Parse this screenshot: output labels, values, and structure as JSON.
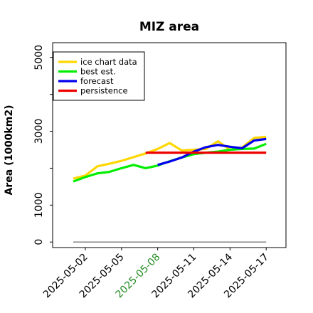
{
  "chart_data": {
    "type": "line",
    "title": "MIZ area",
    "xlabel": "",
    "ylabel": "Area (1000km2)",
    "x_dates": [
      "2025-05-01",
      "2025-05-02",
      "2025-05-03",
      "2025-05-04",
      "2025-05-05",
      "2025-05-06",
      "2025-05-07",
      "2025-05-08",
      "2025-05-09",
      "2025-05-10",
      "2025-05-11",
      "2025-05-12",
      "2025-05-13",
      "2025-05-14",
      "2025-05-15",
      "2025-05-16",
      "2025-05-17"
    ],
    "x_ticks": [
      "2025-05-02",
      "2025-05-05",
      "2025-05-08",
      "2025-05-11",
      "2025-05-14",
      "2025-05-17"
    ],
    "highlight_tick": "2025-05-08",
    "highlight_color": "#228b22",
    "ylim": [
      -150,
      5400
    ],
    "y_ticks": [
      0,
      1000,
      3000,
      5000
    ],
    "y_minor_ticks": [
      2000,
      4000
    ],
    "legend_position": "upper-left",
    "series": [
      {
        "name": "ice chart data",
        "color": "#ffd700",
        "points": [
          [
            "2025-05-01",
            1720
          ],
          [
            "2025-05-02",
            1800
          ],
          [
            "2025-05-03",
            2050
          ],
          [
            "2025-05-04",
            2120
          ],
          [
            "2025-05-05",
            2200
          ],
          [
            "2025-05-06",
            2300
          ],
          [
            "2025-05-07",
            2400
          ],
          [
            "2025-05-08",
            2520
          ],
          [
            "2025-05-09",
            2680
          ],
          [
            "2025-05-10",
            2480
          ],
          [
            "2025-05-11",
            2500
          ],
          [
            "2025-05-12",
            2520
          ],
          [
            "2025-05-13",
            2730
          ],
          [
            "2025-05-14",
            2500
          ],
          [
            "2025-05-15",
            2560
          ],
          [
            "2025-05-16",
            2820
          ],
          [
            "2025-05-17",
            2850
          ]
        ]
      },
      {
        "name": "best est.",
        "color": "#00ee00",
        "points": [
          [
            "2025-05-01",
            1640
          ],
          [
            "2025-05-02",
            1760
          ],
          [
            "2025-05-03",
            1860
          ],
          [
            "2025-05-04",
            1900
          ],
          [
            "2025-05-05",
            2000
          ],
          [
            "2025-05-06",
            2090
          ],
          [
            "2025-05-07",
            2000
          ],
          [
            "2025-05-08",
            2070
          ],
          [
            "2025-05-09",
            2190
          ],
          [
            "2025-05-10",
            2290
          ],
          [
            "2025-05-11",
            2380
          ],
          [
            "2025-05-12",
            2420
          ],
          [
            "2025-05-13",
            2450
          ],
          [
            "2025-05-14",
            2500
          ],
          [
            "2025-05-15",
            2520
          ],
          [
            "2025-05-16",
            2530
          ],
          [
            "2025-05-17",
            2660
          ]
        ]
      },
      {
        "name": "forecast",
        "color": "#0000ee",
        "points": [
          [
            "2025-05-08",
            2090
          ],
          [
            "2025-05-09",
            2180
          ],
          [
            "2025-05-10",
            2290
          ],
          [
            "2025-05-11",
            2450
          ],
          [
            "2025-05-12",
            2570
          ],
          [
            "2025-05-13",
            2630
          ],
          [
            "2025-05-14",
            2580
          ],
          [
            "2025-05-15",
            2540
          ],
          [
            "2025-05-16",
            2750
          ],
          [
            "2025-05-17",
            2790
          ]
        ]
      },
      {
        "name": "persistence",
        "color": "#ee0000",
        "points": [
          [
            "2025-05-07",
            2420
          ],
          [
            "2025-05-17",
            2420
          ]
        ]
      }
    ],
    "reference_line": {
      "y": 0,
      "color": "#808080"
    }
  }
}
